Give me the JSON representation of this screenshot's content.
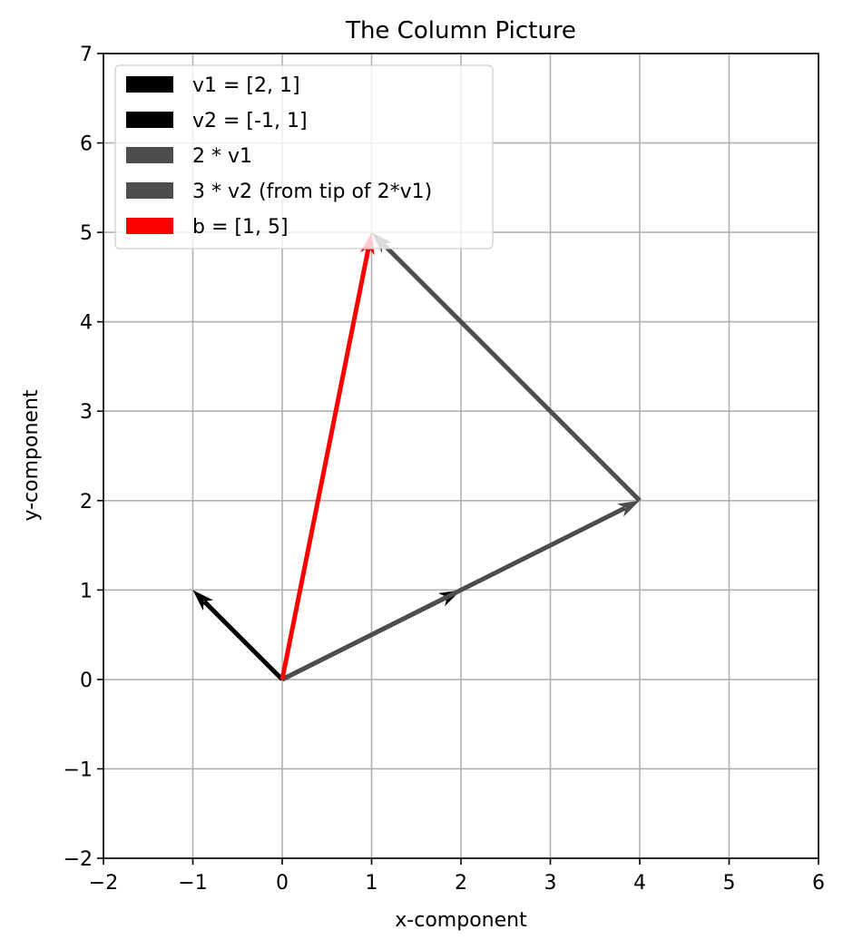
{
  "chart_data": {
    "type": "quiver",
    "title": "The Column Picture",
    "xlabel": "x-component",
    "ylabel": "y-component",
    "xlim": [
      -2,
      6
    ],
    "ylim": [
      -2,
      7
    ],
    "xticks": [
      "−2",
      "−1",
      "0",
      "1",
      "2",
      "3",
      "4",
      "5",
      "6"
    ],
    "yticks": [
      "−2",
      "−1",
      "0",
      "1",
      "2",
      "3",
      "4",
      "5",
      "6",
      "7"
    ],
    "grid": true,
    "legend_position": "upper-left",
    "series": [
      {
        "name": "v1 = [2, 1]",
        "start": [
          0,
          0
        ],
        "end": [
          2,
          1
        ],
        "color": "#000000"
      },
      {
        "name": "v2 = [-1, 1]",
        "start": [
          0,
          0
        ],
        "end": [
          -1,
          1
        ],
        "color": "#000000"
      },
      {
        "name": "2 * v1",
        "start": [
          0,
          0
        ],
        "end": [
          4,
          2
        ],
        "color": "#4d4d4d"
      },
      {
        "name": "3 * v2 (from tip of 2*v1)",
        "start": [
          4,
          2
        ],
        "end": [
          1,
          5
        ],
        "color": "#4d4d4d"
      },
      {
        "name": "b = [1, 5]",
        "start": [
          0,
          0
        ],
        "end": [
          1,
          5
        ],
        "color": "#ff0000"
      }
    ]
  }
}
